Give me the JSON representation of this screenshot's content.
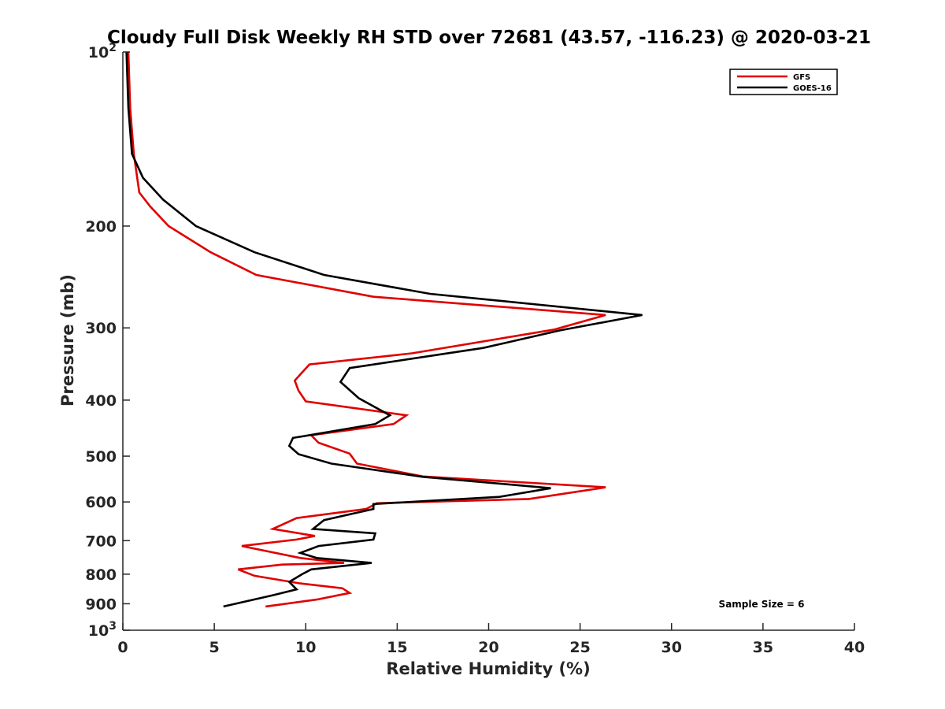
{
  "chart_data": {
    "type": "line",
    "title": "Cloudy Full Disk Weekly RH STD over 72681 (43.57, -116.23) @ 2020-03-21",
    "xlabel": "Relative Humidity (%)",
    "ylabel": "Pressure (mb)",
    "xlim": [
      0,
      40
    ],
    "ylim": [
      100,
      1000
    ],
    "y_scale": "log",
    "y_reversed": true,
    "x_ticks": [
      "0",
      "5",
      "10",
      "15",
      "20",
      "25",
      "30",
      "35",
      "40"
    ],
    "y_ticks": [
      {
        "value": 100,
        "base": "10",
        "exp": "2"
      },
      {
        "value": 200,
        "label": "200"
      },
      {
        "value": 300,
        "label": "300"
      },
      {
        "value": 400,
        "label": "400"
      },
      {
        "value": 500,
        "label": "500"
      },
      {
        "value": 600,
        "label": "600"
      },
      {
        "value": 700,
        "label": "700"
      },
      {
        "value": 800,
        "label": "800"
      },
      {
        "value": 900,
        "label": "900"
      },
      {
        "value": 1000,
        "base": "10",
        "exp": "3"
      }
    ],
    "legend": {
      "position": "top-right"
    },
    "annotation": "Sample Size = 6",
    "series": [
      {
        "name": "GFS",
        "color": "#e00000",
        "points": [
          [
            0.3,
            100
          ],
          [
            0.4,
            125
          ],
          [
            0.6,
            150
          ],
          [
            0.9,
            175
          ],
          [
            1.5,
            185
          ],
          [
            2.5,
            200
          ],
          [
            4.8,
            222
          ],
          [
            7.3,
            243
          ],
          [
            13.7,
            265
          ],
          [
            26.4,
            285
          ],
          [
            23.6,
            302
          ],
          [
            15.8,
            332
          ],
          [
            10.2,
            347
          ],
          [
            9.4,
            370
          ],
          [
            9.6,
            385
          ],
          [
            10.0,
            402
          ],
          [
            15.5,
            425
          ],
          [
            14.8,
            440
          ],
          [
            10.3,
            460
          ],
          [
            10.7,
            474
          ],
          [
            12.4,
            495
          ],
          [
            12.8,
            515
          ],
          [
            16.4,
            542
          ],
          [
            26.4,
            566
          ],
          [
            22.2,
            593
          ],
          [
            13.9,
            603
          ],
          [
            13.3,
            617
          ],
          [
            9.5,
            640
          ],
          [
            8.2,
            668
          ],
          [
            10.5,
            687
          ],
          [
            9.5,
            697
          ],
          [
            6.5,
            715
          ],
          [
            9.7,
            750
          ],
          [
            12.1,
            765
          ],
          [
            8.7,
            770
          ],
          [
            6.3,
            785
          ],
          [
            7.2,
            805
          ],
          [
            9.7,
            830
          ],
          [
            12.0,
            846
          ],
          [
            12.4,
            862
          ],
          [
            10.6,
            885
          ],
          [
            7.8,
            910
          ]
        ]
      },
      {
        "name": "GOES-16",
        "color": "#000000",
        "points": [
          [
            0.2,
            100
          ],
          [
            0.3,
            125
          ],
          [
            0.5,
            150
          ],
          [
            1.1,
            165
          ],
          [
            2.2,
            180
          ],
          [
            4.0,
            200
          ],
          [
            7.2,
            222
          ],
          [
            11.0,
            243
          ],
          [
            16.8,
            262
          ],
          [
            28.4,
            285
          ],
          [
            23.9,
            303
          ],
          [
            19.7,
            325
          ],
          [
            12.4,
            352
          ],
          [
            11.9,
            372
          ],
          [
            12.9,
            397
          ],
          [
            14.6,
            425
          ],
          [
            13.8,
            440
          ],
          [
            9.3,
            465
          ],
          [
            9.1,
            480
          ],
          [
            9.6,
            496
          ],
          [
            11.4,
            515
          ],
          [
            16.4,
            543
          ],
          [
            23.4,
            568
          ],
          [
            20.6,
            588
          ],
          [
            13.7,
            605
          ],
          [
            13.7,
            617
          ],
          [
            11.0,
            645
          ],
          [
            10.4,
            668
          ],
          [
            13.8,
            680
          ],
          [
            13.7,
            697
          ],
          [
            10.7,
            715
          ],
          [
            9.7,
            735
          ],
          [
            10.6,
            750
          ],
          [
            13.6,
            765
          ],
          [
            10.3,
            785
          ],
          [
            9.8,
            800
          ],
          [
            9.1,
            825
          ],
          [
            9.5,
            850
          ],
          [
            8.2,
            870
          ],
          [
            5.5,
            910
          ]
        ]
      }
    ]
  }
}
